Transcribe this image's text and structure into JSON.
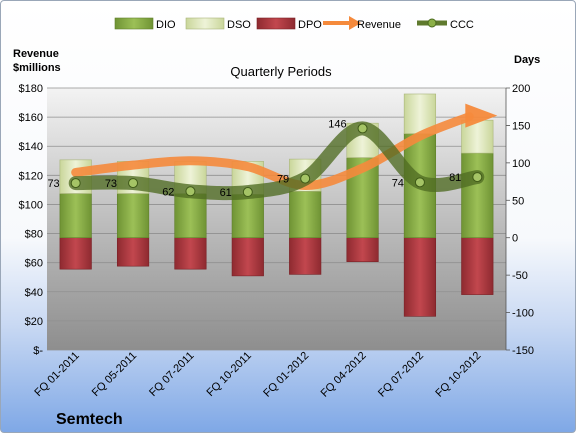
{
  "company": "Semtech",
  "chart_data": {
    "type": "bar",
    "title": "Quarterly Periods",
    "left_axis_label": [
      "Revenue",
      "$millions"
    ],
    "right_axis_label": "Days",
    "categories": [
      "FQ 01-2011",
      "FQ 05-2011",
      "FQ 07-2011",
      "FQ 10-2011",
      "FQ 01-2012",
      "FQ 04-2012",
      "FQ 07-2012",
      "FQ 10-2012"
    ],
    "left_axis": {
      "min": 0,
      "max": 180,
      "step": 20,
      "tick_labels": [
        "$-",
        "$20",
        "$40",
        "$60",
        "$80",
        "$100",
        "$120",
        "$140",
        "$160",
        "$180"
      ]
    },
    "right_axis": {
      "min": -150,
      "max": 200,
      "step": 50,
      "tick_labels": [
        "-150",
        "-100",
        "-50",
        "0",
        "50",
        "100",
        "150",
        "200"
      ]
    },
    "legend": [
      {
        "name": "DIO",
        "kind": "bar",
        "color": "#8cb048"
      },
      {
        "name": "DSO",
        "kind": "bar",
        "color": "#dfe8bf"
      },
      {
        "name": "DPO",
        "kind": "bar",
        "color": "#b03a40"
      },
      {
        "name": "Revenue",
        "kind": "arrow",
        "color": "#f58a3c"
      },
      {
        "name": "CCC",
        "kind": "line",
        "color": "#5f7a2e"
      }
    ],
    "series": [
      {
        "name": "DIO",
        "axis": "right",
        "values": [
          59,
          59,
          59,
          58,
          62,
          107,
          139,
          113
        ]
      },
      {
        "name": "DSO",
        "axis": "right",
        "values": [
          45,
          43,
          43,
          44,
          43,
          46,
          53,
          44
        ]
      },
      {
        "name": "DPO",
        "axis": "right",
        "values": [
          -42,
          -38,
          -42,
          -51,
          -49,
          -32,
          -105,
          -76
        ]
      },
      {
        "name": "Revenue",
        "axis": "left",
        "values": [
          122,
          127,
          130,
          126,
          113,
          125,
          147,
          161
        ]
      },
      {
        "name": "CCC",
        "axis": "right",
        "values": [
          73,
          73,
          62,
          61,
          79,
          146,
          74,
          81
        ],
        "labels": [
          "73",
          "73",
          "62",
          "61",
          "79",
          "146",
          "74",
          "81"
        ]
      }
    ]
  }
}
